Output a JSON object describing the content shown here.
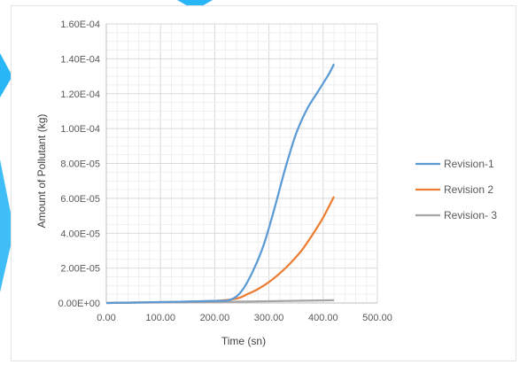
{
  "chart_data": {
    "type": "line",
    "xlabel": "Time (sn)",
    "ylabel": "Amount of Pollutant (kg)",
    "xlim": [
      0,
      500
    ],
    "ylim": [
      0,
      0.00016
    ],
    "x_ticks": [
      "0.00",
      "100.00",
      "200.00",
      "300.00",
      "400.00",
      "500.00"
    ],
    "y_ticks": [
      "0.00E+00",
      "2.00E-05",
      "4.00E-05",
      "6.00E-05",
      "8.00E-05",
      "1.00E-04",
      "1.20E-04",
      "1.40E-04",
      "1.60E-04"
    ],
    "grid": true,
    "legend_position": "right",
    "series": [
      {
        "name": "Revision-1",
        "color": "#5b9bd5",
        "x": [
          0,
          100,
          200,
          230,
          250,
          270,
          290,
          310,
          330,
          350,
          370,
          390,
          410,
          420
        ],
        "y": [
          0,
          5e-07,
          1.2e-06,
          2e-06,
          7e-06,
          1.8e-05,
          3.3e-05,
          5.4e-05,
          7.7e-05,
          9.7e-05,
          0.000111,
          0.000121,
          0.000131,
          0.000137
        ]
      },
      {
        "name": "Revision 2",
        "color": "#ed7d31",
        "x": [
          0,
          100,
          200,
          240,
          260,
          280,
          300,
          320,
          340,
          360,
          380,
          400,
          420
        ],
        "y": [
          0,
          5e-07,
          1.2e-06,
          2.5e-06,
          5e-06,
          8e-06,
          1.2e-05,
          1.7e-05,
          2.3e-05,
          3e-05,
          3.9e-05,
          4.9e-05,
          6.1e-05
        ]
      },
      {
        "name": "Revision- 3",
        "color": "#a5a5a5",
        "x": [
          0,
          100,
          200,
          300,
          420
        ],
        "y": [
          0,
          3e-07,
          6e-07,
          1e-06,
          1.6e-06
        ]
      }
    ]
  }
}
